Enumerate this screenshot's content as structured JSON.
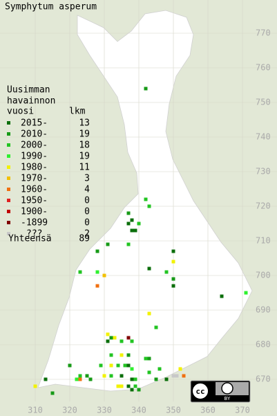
{
  "title": "Symphytum asperum",
  "legend": {
    "heading": [
      "Uusimman",
      "havainnon",
      "vuosi"
    ],
    "count_heading": "lkm",
    "items": [
      {
        "label": "2015-",
        "count": 13,
        "color": "#0b6e0b"
      },
      {
        "label": "2010-",
        "count": 19,
        "color": "#179a17"
      },
      {
        "label": "2000-",
        "count": 18,
        "color": "#22c422"
      },
      {
        "label": "1990-",
        "count": 19,
        "color": "#2ef02e"
      },
      {
        "label": "1980-",
        "count": 11,
        "color": "#f2f200"
      },
      {
        "label": "1970-",
        "count": 3,
        "color": "#f2c000"
      },
      {
        "label": "1960-",
        "count": 4,
        "color": "#f07010"
      },
      {
        "label": "1950-",
        "count": 0,
        "color": "#e02020"
      },
      {
        "label": "1900-",
        "count": 0,
        "color": "#c00000"
      },
      {
        "label": "-1899",
        "count": 0,
        "color": "#800000"
      },
      {
        "label": "???",
        "count": 2,
        "color": "#c8c8c8"
      }
    ],
    "total_label": "Yhteensä",
    "total": 89
  },
  "x_axis": {
    "ticks": [
      310,
      320,
      330,
      340,
      350,
      360,
      370
    ]
  },
  "y_axis": {
    "ticks": [
      670,
      680,
      690,
      700,
      710,
      720,
      730,
      740,
      750,
      760,
      770
    ]
  },
  "license": {
    "badge": "cc",
    "attribution": "BY"
  },
  "squares": [
    [
      342,
      754,
      1
    ],
    [
      342,
      722,
      2
    ],
    [
      343,
      720,
      2
    ],
    [
      337,
      718,
      1
    ],
    [
      338,
      716,
      0
    ],
    [
      337,
      715,
      0
    ],
    [
      340,
      715,
      2
    ],
    [
      338,
      713,
      0
    ],
    [
      339,
      713,
      0
    ],
    [
      331,
      709,
      1
    ],
    [
      337,
      709,
      2
    ],
    [
      328,
      707,
      1
    ],
    [
      350,
      707,
      0
    ],
    [
      350,
      704,
      4
    ],
    [
      323,
      701,
      2
    ],
    [
      328,
      701,
      3
    ],
    [
      330,
      700,
      5
    ],
    [
      343,
      702,
      0
    ],
    [
      348,
      701,
      2
    ],
    [
      350,
      699,
      1
    ],
    [
      350,
      697,
      0
    ],
    [
      328,
      697,
      6
    ],
    [
      364,
      694,
      0
    ],
    [
      371,
      695,
      3
    ],
    [
      343,
      689,
      4
    ],
    [
      345,
      685,
      2
    ],
    [
      331,
      683,
      4
    ],
    [
      332,
      682,
      1
    ],
    [
      333,
      682,
      4
    ],
    [
      331,
      681,
      0
    ],
    [
      335,
      681,
      2
    ],
    [
      337,
      682,
      9
    ],
    [
      338,
      681,
      2
    ],
    [
      332,
      677,
      2
    ],
    [
      335,
      677,
      4
    ],
    [
      337,
      677,
      1
    ],
    [
      342,
      676,
      2
    ],
    [
      343,
      676,
      1
    ],
    [
      320,
      674,
      1
    ],
    [
      329,
      674,
      2
    ],
    [
      332,
      674,
      4
    ],
    [
      334,
      674,
      2
    ],
    [
      336,
      674,
      2
    ],
    [
      337,
      674,
      0
    ],
    [
      338,
      673,
      3
    ],
    [
      323,
      671,
      2
    ],
    [
      325,
      671,
      1
    ],
    [
      323,
      670,
      6
    ],
    [
      330,
      671,
      4
    ],
    [
      332,
      671,
      2
    ],
    [
      335,
      671,
      0
    ],
    [
      338,
      670,
      0
    ],
    [
      339,
      670,
      2
    ],
    [
      313,
      670,
      0
    ],
    [
      315,
      666,
      1
    ],
    [
      310,
      668,
      4
    ],
    [
      334,
      668,
      4
    ],
    [
      335,
      668,
      4
    ],
    [
      337,
      668,
      0
    ],
    [
      338,
      667,
      0
    ],
    [
      339,
      668,
      2
    ],
    [
      343,
      672,
      2
    ],
    [
      346,
      673,
      2
    ],
    [
      348,
      670,
      0
    ],
    [
      345,
      670,
      1
    ],
    [
      352,
      673,
      4
    ],
    [
      350,
      671,
      10
    ],
    [
      351,
      671,
      10
    ],
    [
      353,
      671,
      6
    ],
    [
      322,
      670,
      3
    ],
    [
      326,
      670,
      1
    ],
    [
      340,
      667,
      1
    ]
  ]
}
